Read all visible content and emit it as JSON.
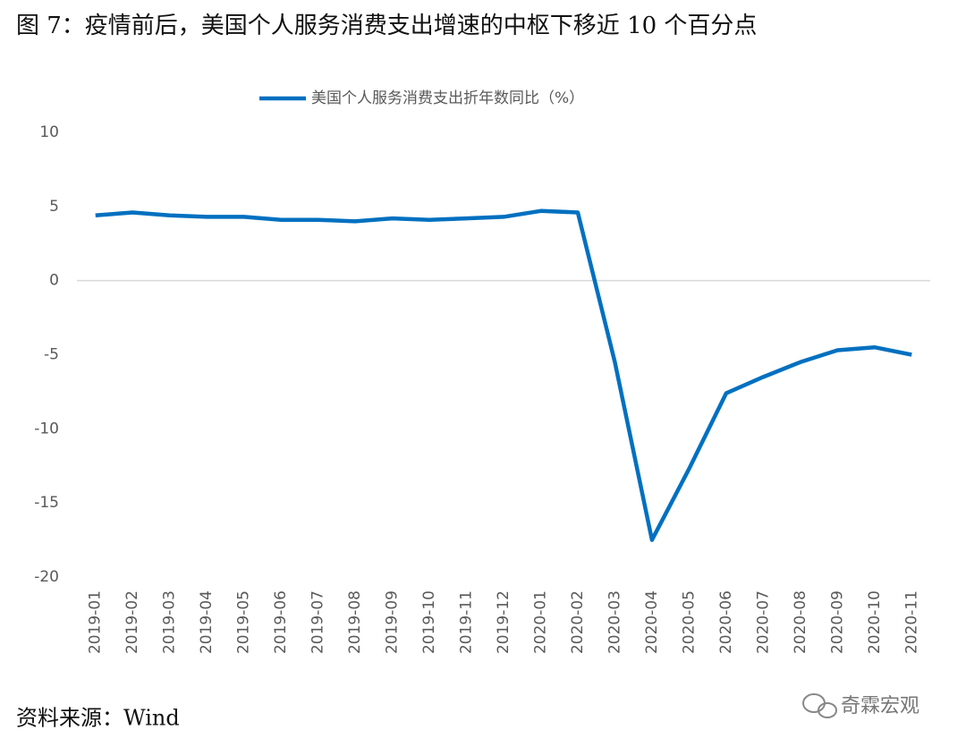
{
  "chart_data": {
    "type": "line",
    "title": "图 7：疫情前后，美国个人服务消费支出增速的中枢下移近 10 个百分点",
    "categories": [
      "2019-01",
      "2019-02",
      "2019-03",
      "2019-04",
      "2019-05",
      "2019-06",
      "2019-07",
      "2019-08",
      "2019-09",
      "2019-10",
      "2019-11",
      "2019-12",
      "2020-01",
      "2020-02",
      "2020-03",
      "2020-04",
      "2020-05",
      "2020-06",
      "2020-07",
      "2020-08",
      "2020-09",
      "2020-10",
      "2020-11"
    ],
    "series": [
      {
        "name": "美国个人服务消费支出折年数同比（%）",
        "color": "#0070c0",
        "values": [
          4.4,
          4.6,
          4.4,
          4.3,
          4.3,
          4.1,
          4.1,
          4.0,
          4.2,
          4.1,
          4.2,
          4.3,
          4.7,
          4.6,
          -5.5,
          -17.5,
          -12.7,
          -7.6,
          -6.5,
          -5.5,
          -4.7,
          -4.5,
          -5.0
        ]
      }
    ],
    "ylim": [
      -20,
      10
    ],
    "yticks": [
      10,
      5,
      0,
      -5,
      -10,
      -15,
      -20
    ],
    "legend": "top",
    "grid": false,
    "source": "资料来源：Wind",
    "watermark": "奇霖宏观"
  }
}
